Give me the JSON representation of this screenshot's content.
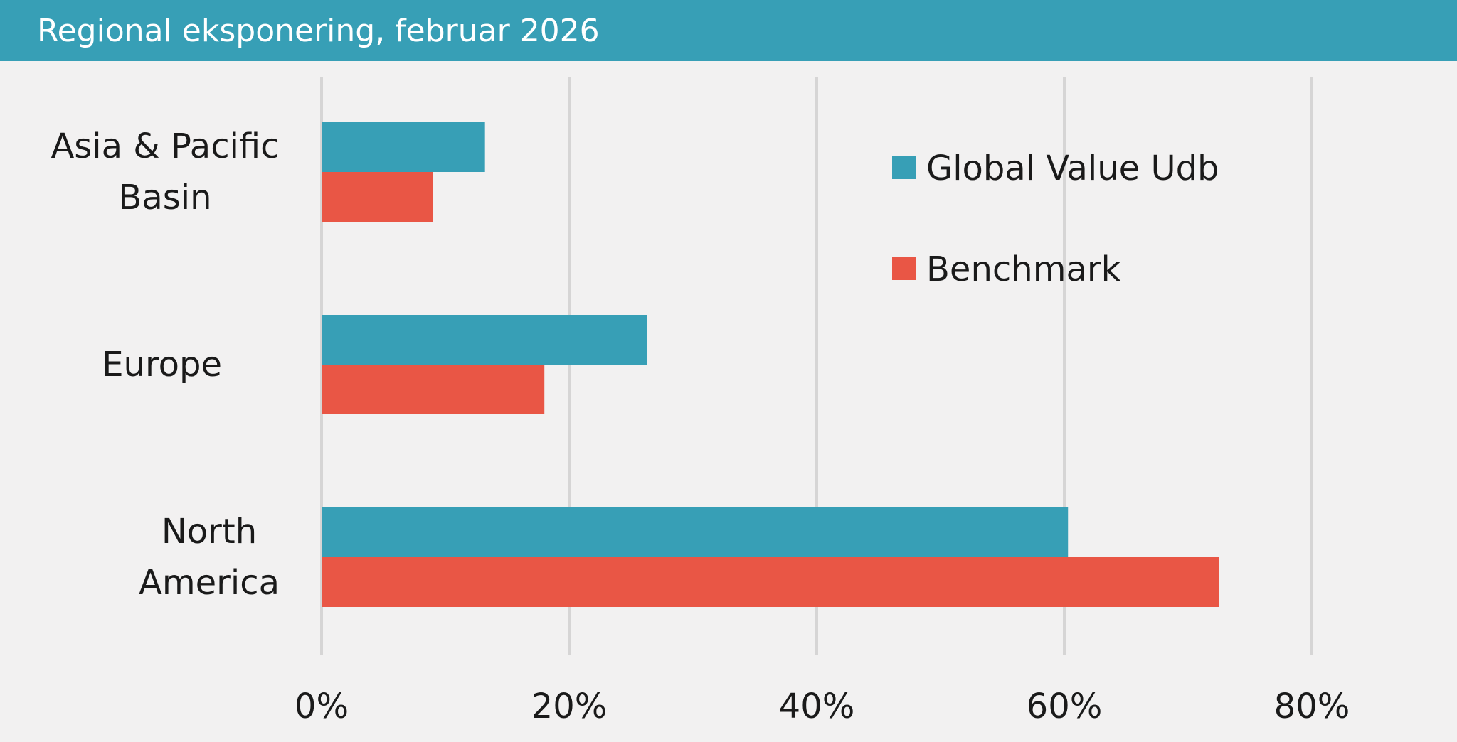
{
  "title": "Regional eksponering, februar 2026",
  "chart_data": {
    "type": "bar",
    "orientation": "horizontal",
    "categories": [
      [
        "Asia & Pacific",
        "Basin"
      ],
      [
        "Europe"
      ],
      [
        "North",
        "America"
      ]
    ],
    "series": [
      {
        "name": "Global Value Udb",
        "color": "#379fb6",
        "values": [
          13.2,
          26.3,
          60.3
        ]
      },
      {
        "name": "Benchmark",
        "color": "#e95645",
        "values": [
          9.0,
          18.0,
          72.5
        ]
      }
    ],
    "xlim": [
      0,
      80
    ],
    "x_ticks": [
      0,
      20,
      40,
      60,
      80
    ],
    "x_tick_labels": [
      "0%",
      "20%",
      "40%",
      "60%",
      "80%"
    ],
    "grid": "vertical",
    "legend_position": "top-right"
  }
}
